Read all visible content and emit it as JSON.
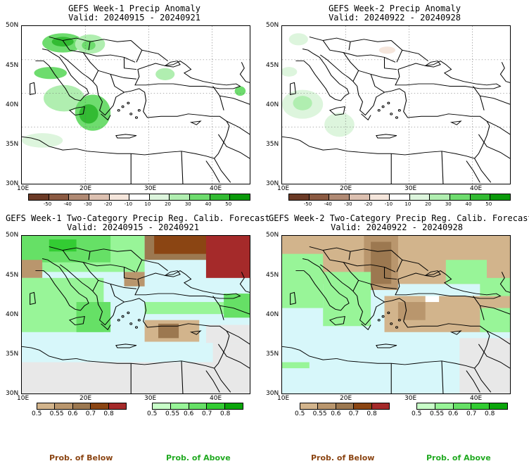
{
  "panels": [
    {
      "title": "GEFS Week-1 Precip Anomaly",
      "valid": "Valid: 20240915 - 20240921"
    },
    {
      "title": "GEFS Week-2 Precip Anomaly",
      "valid": "Valid: 20240922 - 20240928"
    },
    {
      "title": "GEFS Week-1 Two-Category Precip Reg. Calib. Forecast",
      "valid": "Valid: 20240915 - 20240921"
    },
    {
      "title": "GEFS Week-2 Two-Category Precip Reg. Calib. Forecast",
      "valid": "Valid: 20240922 - 20240928"
    }
  ],
  "lat_labels": [
    "50N",
    "45N",
    "40N",
    "35N",
    "30N"
  ],
  "lon_labels": [
    "10E",
    "20E",
    "30E",
    "40E"
  ],
  "anomaly_colorbar": {
    "labels": [
      "-50",
      "-40",
      "-30",
      "-20",
      "-10",
      "10",
      "20",
      "30",
      "40",
      "50"
    ],
    "colors": [
      "#6b3a26",
      "#8b5a42",
      "#b08a74",
      "#dcc0b0",
      "#f5e6dc",
      "#ffffff",
      "#ddf5dd",
      "#b0eeb0",
      "#6edc6e",
      "#33bb33",
      "#0a9a0a"
    ]
  },
  "prob_below_colorbar": {
    "labels": [
      "0.5",
      "0.55",
      "0.6",
      "0.7",
      "0.8"
    ],
    "colors": [
      "#d2b48c",
      "#b9966d",
      "#9c7850",
      "#8b4513",
      "#a52a2a"
    ]
  },
  "prob_above_colorbar": {
    "labels": [
      "0.5",
      "0.55",
      "0.6",
      "0.7",
      "0.8"
    ],
    "colors": [
      "#c8ffc8",
      "#98f598",
      "#66e066",
      "#33cc33",
      "#0aa50a"
    ]
  },
  "footer": {
    "below": "Prob. of Below",
    "above": "Prob. of Above"
  },
  "colors": {
    "sea_prob": "#d7f7fa",
    "no_data": "#e8e8e8",
    "below_text": "#8b4513",
    "above_text": "#22aa22"
  }
}
